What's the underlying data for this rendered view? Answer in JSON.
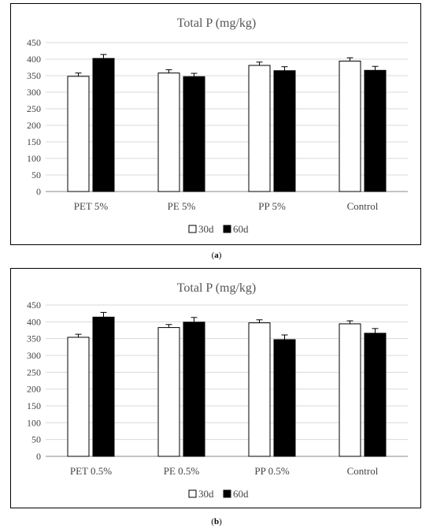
{
  "chart_data": [
    {
      "type": "bar",
      "title": "Total P (mg/kg)",
      "categories": [
        "PET 5%",
        "PE 5%",
        "PP 5%",
        "Control"
      ],
      "series": [
        {
          "name": "30d",
          "values": [
            348,
            358,
            381,
            394
          ],
          "errors": [
            10,
            10,
            10,
            10
          ],
          "color": "#ffffff"
        },
        {
          "name": "60d",
          "values": [
            402,
            347,
            365,
            366
          ],
          "errors": [
            12,
            10,
            12,
            12
          ],
          "color": "#000000"
        }
      ],
      "yticks": [
        "0",
        "50",
        "100",
        "150",
        "200",
        "250",
        "300",
        "350",
        "400",
        "450"
      ],
      "ylim": [
        0,
        450
      ],
      "grid": true,
      "legend": "bottom-center",
      "panel_label": "a"
    },
    {
      "type": "bar",
      "title": "Total P (mg/kg)",
      "categories": [
        "PET 0.5%",
        "PE 0.5%",
        "PP 0.5%",
        "Control"
      ],
      "series": [
        {
          "name": "30d",
          "values": [
            354,
            383,
            397,
            394
          ],
          "errors": [
            9,
            9,
            9,
            9
          ],
          "color": "#ffffff"
        },
        {
          "name": "60d",
          "values": [
            414,
            399,
            347,
            366
          ],
          "errors": [
            14,
            14,
            14,
            14
          ],
          "color": "#000000"
        }
      ],
      "yticks": [
        "0",
        "50",
        "100",
        "150",
        "200",
        "250",
        "300",
        "350",
        "400",
        "450"
      ],
      "ylim": [
        0,
        450
      ],
      "grid": true,
      "legend": "bottom-center",
      "panel_label": "b"
    }
  ]
}
